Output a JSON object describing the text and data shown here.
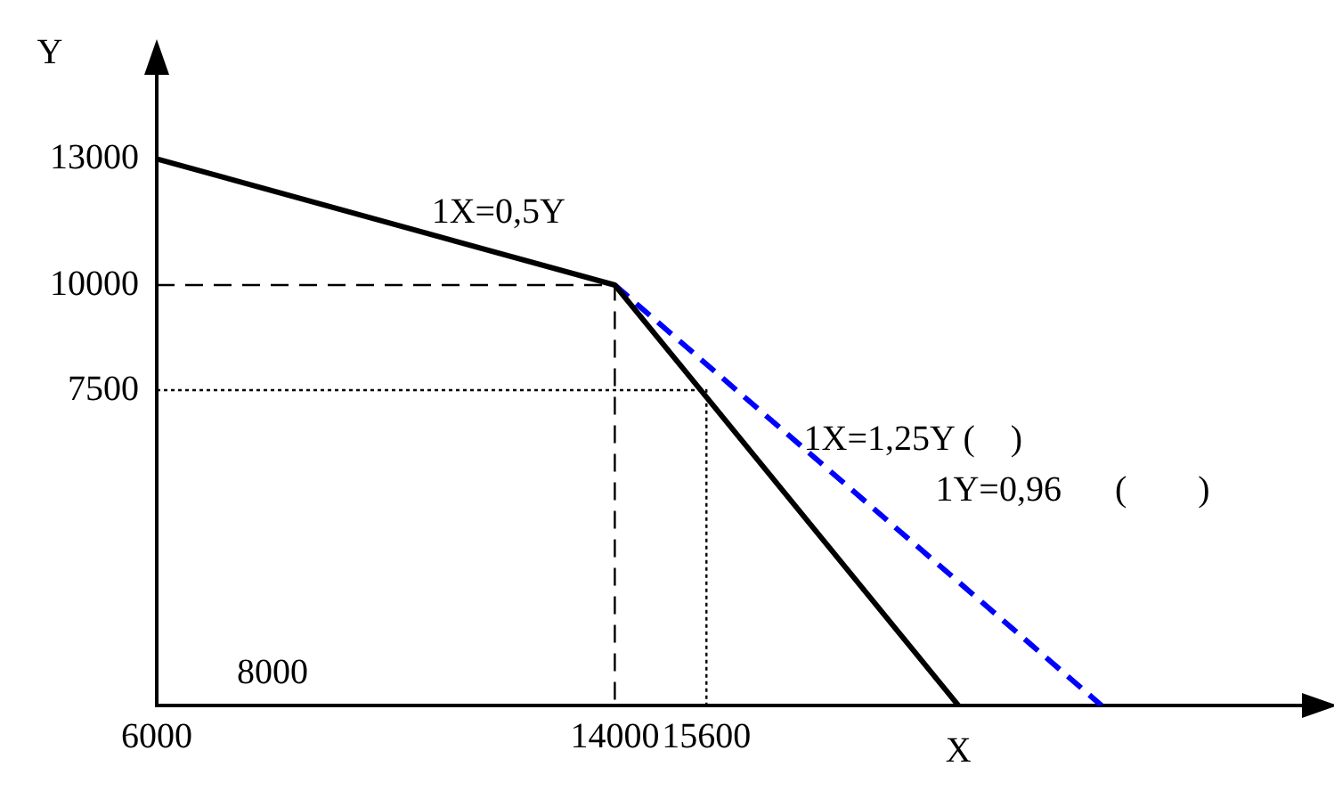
{
  "chart_data": {
    "type": "line",
    "xlabel": "X",
    "ylabel": "Y",
    "xlim": [
      6000,
      26000
    ],
    "ylim": [
      0,
      15000
    ],
    "xticks": [
      6000,
      14000,
      15600
    ],
    "yticks": [
      7500,
      10000,
      13000
    ],
    "grid": false,
    "legend": false,
    "marker": "none",
    "series": [
      {
        "color": "#000000",
        "line_style": "solid",
        "x": [
          6000,
          14000,
          20000
        ],
        "values": [
          13000,
          10000,
          0
        ]
      },
      {
        "color": "#0000ff",
        "line_style": "dashed",
        "x": [
          14000,
          22500
        ],
        "values": [
          10000,
          0
        ]
      },
      {
        "color": "#000000",
        "line_style": "dashed",
        "x": [
          6000,
          14000,
          14000
        ],
        "values": [
          10000,
          10000,
          0
        ]
      },
      {
        "color": "#000000",
        "line_style": "dotted",
        "x": [
          6000,
          15600,
          15600
        ],
        "values": [
          7500,
          7500,
          0
        ]
      }
    ],
    "annotations": [
      "1X=0,5Y",
      {
        "text": "1X=1,25Y (    )",
        "x": 17300,
        "y": 6300
      },
      "1Y=0,96      (        )",
      "8000"
    ]
  }
}
